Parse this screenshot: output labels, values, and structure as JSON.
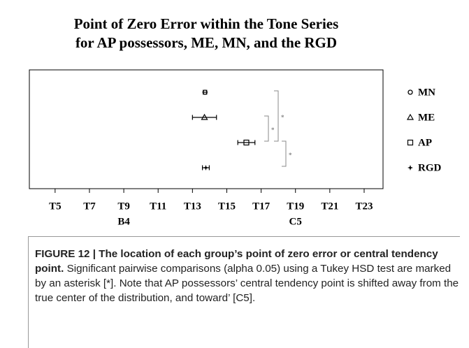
{
  "chart_data": {
    "type": "errorbar-dot",
    "title": [
      "Point of Zero Error within the Tone Series",
      "for AP possessors, ME, MN, and the RGD"
    ],
    "series": [
      {
        "name": "MN",
        "marker": "circle",
        "color": "#000000",
        "values": [
          13.73
        ],
        "errors": [
          0.1
        ]
      },
      {
        "name": "ME",
        "marker": "triangle",
        "color": "#000000",
        "values": [
          13.7
        ],
        "errors": [
          0.7
        ]
      },
      {
        "name": "AP",
        "marker": "square",
        "color": "#000000",
        "values": [
          16.14
        ],
        "errors": [
          0.5
        ]
      },
      {
        "name": "RGD",
        "marker": "star",
        "color": "#000000",
        "values": [
          13.78
        ],
        "errors": [
          0.2
        ]
      }
    ],
    "xlim": [
      3.5,
      24.1
    ],
    "xticks": [
      {
        "value": 5,
        "label": "T5"
      },
      {
        "value": 7,
        "label": "T7"
      },
      {
        "value": 9,
        "label": "T9"
      },
      {
        "value": 11,
        "label": "T11"
      },
      {
        "value": 13,
        "label": "T13"
      },
      {
        "value": 15,
        "label": "T15"
      },
      {
        "value": 17,
        "label": "T17"
      },
      {
        "value": 19,
        "label": "T19"
      },
      {
        "value": 21,
        "label": "T21"
      },
      {
        "value": 23,
        "label": "T23"
      }
    ],
    "x_sublabels": [
      {
        "value": 9,
        "label": "B4"
      },
      {
        "value": 19,
        "label": "C5"
      }
    ],
    "brackets": [
      {
        "from": 0,
        "to": 2,
        "label": "*"
      },
      {
        "from": 1,
        "to": 2,
        "label": "*"
      },
      {
        "from": 2,
        "to": 3,
        "label": "*"
      }
    ],
    "legend": "right"
  },
  "caption": {
    "label": "FIGURE 12 | The location of each group’s point of zero error or central tendency point.",
    "text": "Significant pairwise comparisons (alpha 0.05) using a Tukey HSD test are marked by an asterisk [*]. Note that AP possessors’ central tendency point is shifted away from the true center of the distribution, and toward’ [C5]."
  }
}
